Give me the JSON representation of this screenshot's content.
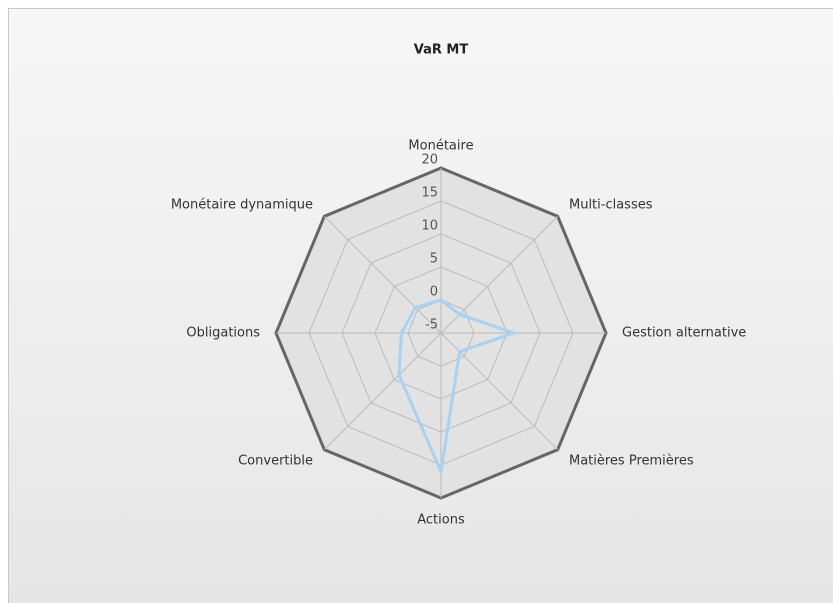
{
  "chart_data": {
    "type": "radar",
    "title": "VaR MT",
    "categories": [
      "Monétaire",
      "Multi-classes",
      "Gestion alternative",
      "Matières Premières",
      "Actions",
      "Convertible",
      "Obligations",
      "Monétaire dynamique"
    ],
    "series": [
      {
        "name": "VaR MT",
        "color": "#a9d1f2",
        "values": [
          0,
          -1,
          6,
          -1,
          16,
          4,
          1,
          0.5
        ]
      }
    ],
    "ylim": [
      -5,
      20
    ],
    "yticks": [
      -5,
      0,
      5,
      10,
      15,
      20
    ],
    "grid": true
  }
}
